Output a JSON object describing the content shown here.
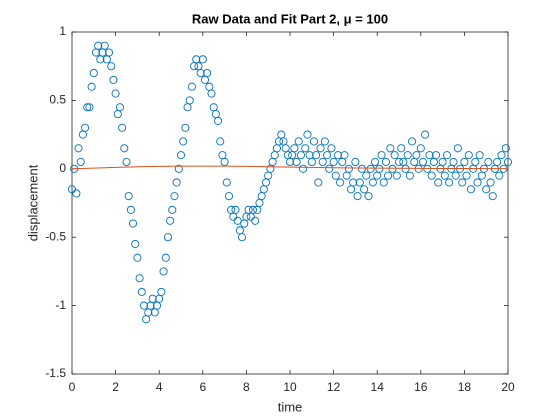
{
  "chart_data": {
    "type": "scatter",
    "title": "Raw Data and Fit Part 2, μ = 100",
    "x_label": "time",
    "y_label": "displacement",
    "xlim": [
      0,
      20
    ],
    "ylim": [
      -1.5,
      1
    ],
    "xticks": [
      0,
      2,
      4,
      6,
      8,
      10,
      12,
      14,
      16,
      18,
      20
    ],
    "yticks": [
      -1.5,
      -1,
      -0.5,
      0,
      0.5,
      1
    ],
    "series": [
      {
        "name": "data",
        "color": "#0072bd",
        "x": [
          0,
          0.1,
          0.2,
          0.3,
          0.4,
          0.5,
          0.6,
          0.7,
          0.8,
          0.9,
          1,
          1.1,
          1.2,
          1.3,
          1.4,
          1.5,
          1.6,
          1.7,
          1.8,
          1.9,
          2,
          2.1,
          2.2,
          2.3,
          2.4,
          2.5,
          2.6,
          2.7,
          2.8,
          2.9,
          3,
          3.1,
          3.2,
          3.3,
          3.4,
          3.5,
          3.6,
          3.7,
          3.8,
          3.9,
          4,
          4.1,
          4.2,
          4.3,
          4.4,
          4.5,
          4.6,
          4.7,
          4.8,
          4.9,
          5,
          5.1,
          5.2,
          5.3,
          5.4,
          5.5,
          5.6,
          5.7,
          5.8,
          5.9,
          6,
          6.1,
          6.2,
          6.3,
          6.4,
          6.5,
          6.6,
          6.7,
          6.8,
          6.9,
          7,
          7.1,
          7.2,
          7.3,
          7.4,
          7.5,
          7.6,
          7.7,
          7.8,
          7.9,
          8,
          8.1,
          8.2,
          8.3,
          8.4,
          8.5,
          8.6,
          8.7,
          8.8,
          8.9,
          9,
          9.1,
          9.2,
          9.3,
          9.4,
          9.5,
          9.6,
          9.7,
          9.8,
          9.9,
          10,
          10.1,
          10.2,
          10.3,
          10.4,
          10.5,
          10.6,
          10.7,
          10.8,
          10.9,
          11,
          11.1,
          11.2,
          11.3,
          11.4,
          11.5,
          11.6,
          11.7,
          11.8,
          11.9,
          12,
          12.1,
          12.2,
          12.3,
          12.4,
          12.5,
          12.6,
          12.7,
          12.8,
          12.9,
          13,
          13.1,
          13.2,
          13.3,
          13.4,
          13.5,
          13.6,
          13.7,
          13.8,
          13.9,
          14,
          14.1,
          14.2,
          14.3,
          14.4,
          14.5,
          14.6,
          14.7,
          14.8,
          14.9,
          15,
          15.1,
          15.2,
          15.3,
          15.4,
          15.5,
          15.6,
          15.7,
          15.8,
          15.9,
          16,
          16.1,
          16.2,
          16.3,
          16.4,
          16.5,
          16.6,
          16.7,
          16.8,
          16.9,
          17,
          17.1,
          17.2,
          17.3,
          17.4,
          17.5,
          17.6,
          17.7,
          17.8,
          17.9,
          18,
          18.1,
          18.2,
          18.3,
          18.4,
          18.5,
          18.6,
          18.7,
          18.8,
          18.9,
          19,
          19.1,
          19.2,
          19.3,
          19.4,
          19.5,
          19.6,
          19.7,
          19.8,
          19.9,
          20
        ],
        "values": [
          -0.15,
          0,
          -0.18,
          0.15,
          0.05,
          0.25,
          0.3,
          0.45,
          0.45,
          0.6,
          0.7,
          0.85,
          0.9,
          0.8,
          0.85,
          0.9,
          0.8,
          0.85,
          0.75,
          0.65,
          0.55,
          0.4,
          0.45,
          0.3,
          0.15,
          0.05,
          -0.2,
          -0.3,
          -0.4,
          -0.55,
          -0.65,
          -0.8,
          -0.9,
          -1,
          -1.1,
          -1.05,
          -1,
          -0.95,
          -1.05,
          -1,
          -0.95,
          -0.9,
          -0.75,
          -0.65,
          -0.5,
          -0.38,
          -0.3,
          -0.2,
          -0.1,
          0,
          0.1,
          0.2,
          0.3,
          0.45,
          0.5,
          0.6,
          0.75,
          0.8,
          0.75,
          0.7,
          0.8,
          0.65,
          0.7,
          0.6,
          0.55,
          0.45,
          0.4,
          0.35,
          0.2,
          0.1,
          0.05,
          -0.1,
          -0.2,
          -0.3,
          -0.35,
          -0.3,
          -0.38,
          -0.45,
          -0.5,
          -0.4,
          -0.35,
          -0.3,
          -0.35,
          -0.3,
          -0.38,
          -0.3,
          -0.25,
          -0.2,
          -0.15,
          -0.1,
          -0.05,
          0,
          0.05,
          0.1,
          0.15,
          0.2,
          0.25,
          0.2,
          0.15,
          0.1,
          0.05,
          0.1,
          0.15,
          0.05,
          0.2,
          0.1,
          0,
          0.15,
          0.25,
          0.1,
          0.05,
          0.2,
          0.1,
          -0.1,
          0.15,
          0.05,
          0.2,
          0.1,
          0,
          0.15,
          0.05,
          -0.05,
          0.1,
          -0.1,
          0.05,
          0.1,
          -0.05,
          0,
          -0.15,
          -0.1,
          0.05,
          -0.2,
          -0.1,
          0,
          -0.15,
          -0.05,
          -0.2,
          0,
          -0.1,
          0.05,
          -0.05,
          0,
          0.1,
          -0.1,
          0.05,
          -0.05,
          0.15,
          0,
          0.1,
          -0.05,
          0.05,
          0.15,
          0.05,
          0,
          0.1,
          -0.05,
          0.2,
          0.05,
          0.1,
          0,
          0.15,
          0.05,
          0.25,
          0,
          0.1,
          -0.05,
          0.05,
          0.1,
          -0.1,
          0,
          0.05,
          -0.05,
          0.1,
          -0.1,
          0,
          0.05,
          -0.05,
          0.15,
          0,
          -0.1,
          0.05,
          -0.05,
          0.1,
          -0.15,
          0,
          0.05,
          -0.1,
          0.1,
          -0.05,
          0,
          -0.15,
          0.05,
          -0.1,
          -0.2,
          0,
          0.05,
          -0.05,
          0.1,
          0,
          0.15,
          0.05
        ]
      },
      {
        "name": "fit",
        "type": "line",
        "color": "#d95319",
        "x": [
          0,
          1,
          2,
          3,
          4,
          5,
          6,
          7,
          8,
          9,
          10,
          11,
          12,
          13,
          14,
          15,
          16,
          17,
          18,
          19,
          20
        ],
        "values": [
          0,
          0.005,
          0.01,
          0.015,
          0.018,
          0.02,
          0.02,
          0.02,
          0.018,
          0.015,
          0.012,
          0.01,
          0.008,
          0.006,
          0.005,
          0.004,
          0.003,
          0.002,
          0.002,
          0.001,
          0.001
        ]
      }
    ]
  }
}
